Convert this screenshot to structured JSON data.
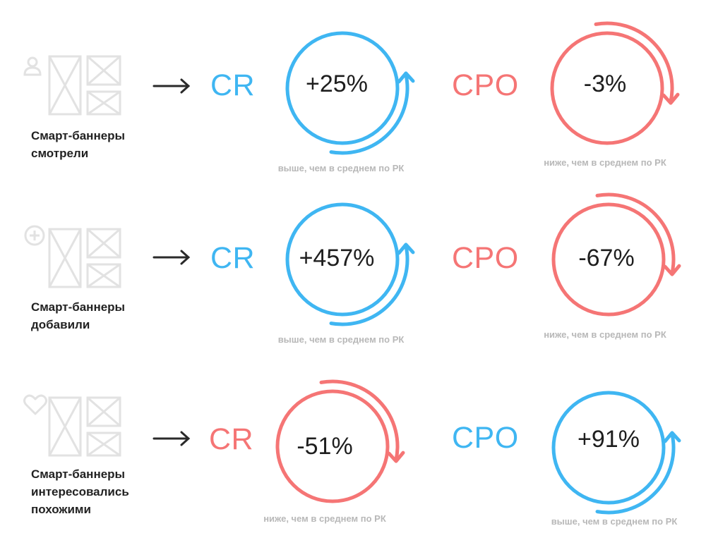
{
  "colors": {
    "blue": "#3fb6f2",
    "red": "#f57575",
    "wire": "#e2e2e2",
    "text": "#222222",
    "note": "#b8b8b8"
  },
  "rows": [
    {
      "label": "Смарт-баннеры\nсмотрели",
      "icon": "user-icon",
      "cr": {
        "metric": "CR",
        "value": "+25%",
        "direction": "up",
        "color": "blue",
        "note": "выше, чем в среднем по РК"
      },
      "cpo": {
        "metric": "CPO",
        "value": "-3%",
        "direction": "down",
        "color": "red",
        "note": "ниже, чем в среднем по РК"
      }
    },
    {
      "label": "Смарт-баннеры\nдобавили",
      "icon": "plus-circle-icon",
      "cr": {
        "metric": "CR",
        "value": "+457%",
        "direction": "up",
        "color": "blue",
        "note": "выше, чем в среднем по РК"
      },
      "cpo": {
        "metric": "CPO",
        "value": "-67%",
        "direction": "down",
        "color": "red",
        "note": "ниже, чем в среднем по РК"
      }
    },
    {
      "label": "Смарт-баннеры\nинтересовались\nпохожими",
      "icon": "heart-icon",
      "cr": {
        "metric": "CR",
        "value": "-51%",
        "direction": "down",
        "color": "red",
        "note": "ниже, чем в среднем по РК"
      },
      "cpo": {
        "metric": "CPO",
        "value": "+91%",
        "direction": "up",
        "color": "blue",
        "note": "выше, чем в среднем по РК"
      }
    }
  ]
}
